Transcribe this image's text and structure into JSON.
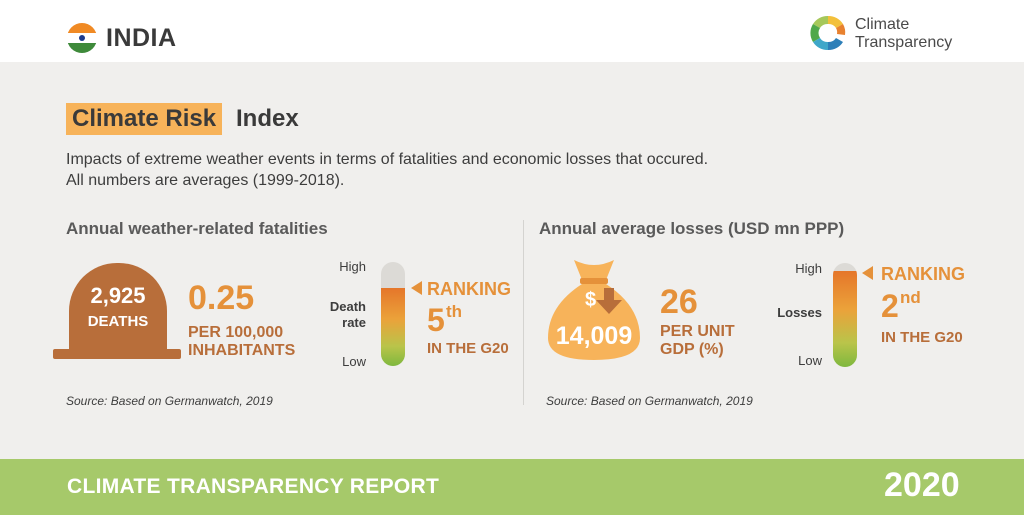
{
  "header": {
    "country": "INDIA",
    "logo_line1": "Climate",
    "logo_line2": "Transparency"
  },
  "title": {
    "highlight": "Climate Risk",
    "rest": "Index"
  },
  "description": {
    "line1": "Impacts of extreme weather events in terms of fatalities and economic losses that occured.",
    "line2": "All numbers are averages (1999-2018)."
  },
  "fatalities": {
    "title": "Annual weather-related fatalities",
    "deaths_value": "2,925",
    "deaths_label": "DEATHS",
    "rate_value": "0.25",
    "rate_label_1": "PER 100,000",
    "rate_label_2": "INHABITANTS",
    "scale_high": "High",
    "scale_mid_1": "Death",
    "scale_mid_2": "rate",
    "scale_low": "Low",
    "ranking_label": "RANKING",
    "rank_number": "5",
    "rank_suffix": "th",
    "rank_context": "IN THE G20",
    "source": "Source: Based on Germanwatch, 2019"
  },
  "losses": {
    "title": "Annual average losses (USD mn PPP)",
    "bag_symbol": "$",
    "losses_value": "14,009",
    "gdp_value": "26",
    "gdp_label_1": "PER UNIT",
    "gdp_label_2": "GDP (%)",
    "scale_high": "High",
    "scale_mid": "Losses",
    "scale_low": "Low",
    "ranking_label": "RANKING",
    "rank_number": "2",
    "rank_suffix": "nd",
    "rank_context": "IN THE G20",
    "source": "Source: Based on Germanwatch, 2019"
  },
  "footer": {
    "report_title": "CLIMATE TRANSPARENCY REPORT",
    "year": "2020"
  },
  "colors": {
    "highlight": "#f7b35a",
    "orange": "#e5913a",
    "brown": "#b86e3a",
    "footer_green": "#a6c96a"
  },
  "icons": {
    "flag": "india-flag-icon",
    "logo": "climate-transparency-logo",
    "tombstone": "tombstone-icon",
    "money_bag": "money-bag-icon",
    "rank_marker": "triangle-pointer-icon"
  }
}
